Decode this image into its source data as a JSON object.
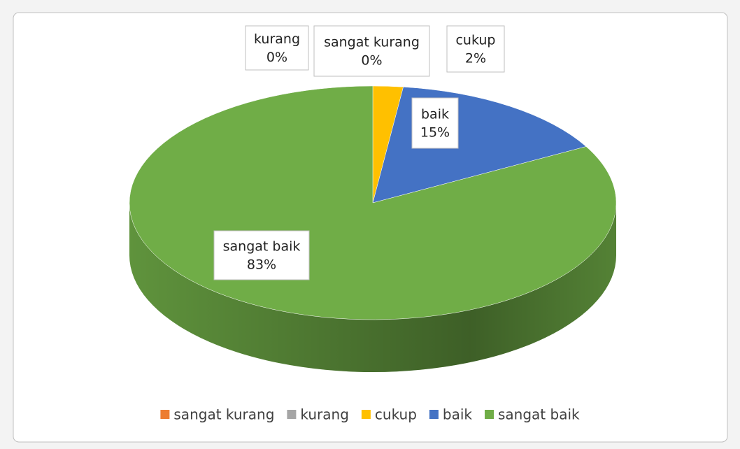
{
  "chart_data": {
    "type": "pie",
    "categories": [
      "sangat kurang",
      "kurang",
      "cukup",
      "baik",
      "sangat baik"
    ],
    "values": [
      0,
      0,
      2,
      15,
      83
    ],
    "value_labels": [
      "0%",
      "0%",
      "2%",
      "15%",
      "83%"
    ],
    "colors": [
      "#ed7d31",
      "#a5a5a5",
      "#ffc000",
      "#4472c4",
      "#70ad47"
    ],
    "legend": "bottom"
  }
}
